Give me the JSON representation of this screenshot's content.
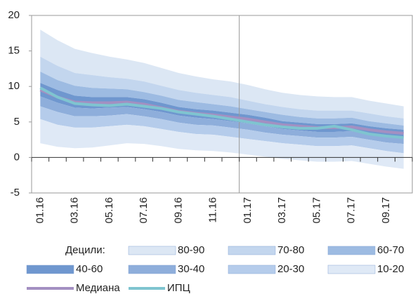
{
  "chart_data": {
    "type": "fan",
    "categories": [
      "01.16",
      null,
      "03.16",
      null,
      "05.16",
      null,
      "07.16",
      null,
      "09.16",
      null,
      "11.16",
      null,
      "01.17",
      null,
      "03.17",
      null,
      "05.17",
      null,
      "07.17",
      null,
      "09.17",
      null
    ],
    "ylim": [
      -5,
      20
    ],
    "yticks": [
      -5,
      0,
      5,
      10,
      15,
      20
    ],
    "legend_title": "Децили:",
    "bands": [
      {
        "name": "80-90",
        "color": "#dce7f4",
        "low": [
          14.2,
          12.9,
          11.9,
          11.6,
          11.3,
          11.1,
          10.7,
          10.1,
          9.5,
          9.1,
          8.8,
          8.5,
          8.0,
          7.5,
          7.1,
          6.8,
          6.6,
          6.6,
          6.6,
          6.2,
          5.8,
          5.5
        ],
        "high": [
          18.0,
          16.5,
          15.3,
          14.7,
          14.2,
          13.8,
          13.3,
          12.6,
          11.9,
          11.4,
          11.0,
          10.7,
          10.2,
          9.6,
          9.1,
          8.8,
          8.6,
          8.5,
          8.5,
          8.0,
          7.6,
          7.2
        ]
      },
      {
        "name": "70-80",
        "color": "#c3d6ee",
        "low": [
          12.1,
          10.9,
          10.1,
          9.8,
          9.7,
          9.6,
          9.2,
          8.7,
          8.1,
          7.8,
          7.5,
          7.2,
          6.8,
          6.4,
          6.0,
          5.7,
          5.5,
          5.5,
          5.6,
          5.1,
          4.8,
          4.5
        ],
        "high": [
          14.2,
          12.9,
          11.9,
          11.6,
          11.3,
          11.1,
          10.7,
          10.1,
          9.5,
          9.1,
          8.8,
          8.5,
          8.0,
          7.5,
          7.1,
          6.8,
          6.6,
          6.6,
          6.6,
          6.2,
          5.8,
          5.5
        ]
      },
      {
        "name": "60-70",
        "color": "#9dbbe2",
        "low": [
          10.5,
          9.5,
          8.7,
          8.5,
          8.5,
          8.5,
          8.2,
          7.7,
          7.1,
          6.8,
          6.6,
          6.3,
          6.0,
          5.6,
          5.1,
          4.9,
          4.7,
          4.7,
          4.8,
          4.4,
          4.1,
          3.9
        ],
        "high": [
          12.1,
          10.9,
          10.1,
          9.8,
          9.7,
          9.6,
          9.2,
          8.7,
          8.1,
          7.8,
          7.5,
          7.2,
          6.8,
          6.4,
          6.0,
          5.7,
          5.5,
          5.5,
          5.6,
          5.1,
          4.8,
          4.5
        ]
      },
      {
        "name": "40-60",
        "color": "#6f97cf",
        "low": [
          8.6,
          7.7,
          7.0,
          6.9,
          7.0,
          7.1,
          6.8,
          6.4,
          5.9,
          5.6,
          5.4,
          5.1,
          4.8,
          4.4,
          4.0,
          3.8,
          3.6,
          3.6,
          3.7,
          3.3,
          3.0,
          2.8
        ],
        "high": [
          10.5,
          9.5,
          8.7,
          8.5,
          8.5,
          8.5,
          8.2,
          7.7,
          7.1,
          6.8,
          6.6,
          6.3,
          6.0,
          5.6,
          5.1,
          4.9,
          4.7,
          4.7,
          4.8,
          4.4,
          4.1,
          3.9
        ]
      },
      {
        "name": "30-40",
        "color": "#8eaedb",
        "low": [
          7.2,
          6.4,
          5.8,
          5.8,
          5.9,
          6.1,
          5.8,
          5.4,
          4.9,
          4.6,
          4.5,
          4.2,
          3.9,
          3.5,
          3.2,
          3.0,
          2.8,
          2.8,
          2.9,
          2.5,
          2.1,
          1.9
        ],
        "high": [
          8.6,
          7.7,
          7.0,
          6.9,
          7.0,
          7.1,
          6.8,
          6.4,
          5.9,
          5.6,
          5.4,
          5.1,
          4.8,
          4.4,
          4.0,
          3.8,
          3.6,
          3.6,
          3.7,
          3.3,
          3.0,
          2.8
        ]
      },
      {
        "name": "20-30",
        "color": "#b5cceb",
        "low": [
          5.4,
          4.6,
          4.2,
          4.2,
          4.4,
          4.6,
          4.4,
          4.0,
          3.6,
          3.3,
          3.2,
          2.9,
          2.6,
          2.3,
          2.0,
          1.8,
          1.6,
          1.6,
          1.7,
          1.3,
          0.9,
          0.6
        ],
        "high": [
          7.2,
          6.4,
          5.8,
          5.8,
          5.9,
          6.1,
          5.8,
          5.4,
          4.9,
          4.6,
          4.5,
          4.2,
          3.9,
          3.5,
          3.2,
          3.0,
          2.8,
          2.8,
          2.9,
          2.5,
          2.1,
          1.9
        ]
      },
      {
        "name": "10-20",
        "color": "#dfe9f6",
        "low": [
          2.0,
          1.5,
          1.3,
          1.4,
          1.7,
          2.0,
          1.9,
          1.6,
          1.2,
          1.0,
          0.9,
          0.7,
          0.4,
          0.1,
          -0.2,
          -0.4,
          -0.6,
          -0.6,
          -0.5,
          -0.9,
          -1.3,
          -1.6
        ],
        "high": [
          5.4,
          4.6,
          4.2,
          4.2,
          4.4,
          4.6,
          4.4,
          4.0,
          3.6,
          3.3,
          3.2,
          2.9,
          2.6,
          2.3,
          2.0,
          1.8,
          1.6,
          1.6,
          1.7,
          1.3,
          0.9,
          0.6
        ]
      }
    ],
    "series": [
      {
        "name": "Медиана",
        "color": "#a390c2",
        "values": [
          9.5,
          8.5,
          7.8,
          7.7,
          7.7,
          7.8,
          7.5,
          7.0,
          6.5,
          6.2,
          6.0,
          5.7,
          5.4,
          5.0,
          4.6,
          4.4,
          4.2,
          4.2,
          4.3,
          3.9,
          3.6,
          3.4
        ]
      },
      {
        "name": "ИПЦ",
        "color": "#7fc4d0",
        "values": [
          9.8,
          8.5,
          7.6,
          7.4,
          7.3,
          7.5,
          7.2,
          6.9,
          6.4,
          6.1,
          5.8,
          5.4,
          5.0,
          4.6,
          4.3,
          4.1,
          4.1,
          4.4,
          3.9,
          3.3,
          3.0,
          2.8
        ]
      }
    ]
  }
}
